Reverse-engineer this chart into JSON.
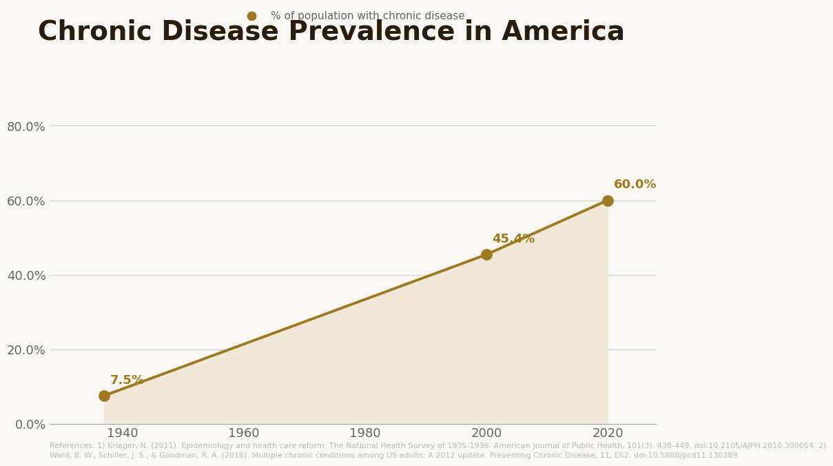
{
  "title": "Chronic Disease Prevalence in America",
  "title_fontsize": 28,
  "title_fontweight": "bold",
  "title_color": "#2b1d0e",
  "legend_label": "% of population with chronic disease",
  "x_values": [
    1937,
    2000,
    2020
  ],
  "y_values": [
    7.5,
    45.4,
    60.0
  ],
  "labels": [
    "7.5%",
    "45.4%",
    "60.0%"
  ],
  "line_color": "#a07820",
  "marker_color": "#a07820",
  "fill_color": "#f0e8d8",
  "fill_alpha": 1.0,
  "background_color": "#faf8f4",
  "grid_color": "#cccccc",
  "ytick_labels": [
    "0.0%",
    "20.0%",
    "40.0%",
    "60.0%",
    "80.0%"
  ],
  "ytick_values": [
    0,
    20,
    40,
    60,
    80
  ],
  "xtick_values": [
    1940,
    1960,
    1980,
    2000,
    2020
  ],
  "xlim": [
    1928,
    2028
  ],
  "ylim": [
    0,
    90
  ],
  "line_width": 2.8,
  "marker_size": 11,
  "label_fontsize": 13,
  "label_color": "#a07820",
  "tick_fontsize": 13,
  "tick_color": "#666666",
  "axis_color": "#aaaaaa",
  "reference_text": "References: 1) Krieger, N. (2011). Epidemiology and health care reform: The National Health Survey of 1935-1936. American Journal of Public Health, 101(3), 438-449. doi:10.2105/AJPH.2010.300054. 2)\nWard, B. W., Schiller, J. S., & Goodman, R. A. (2018). Multiple chronic conditions among US adults: A 2012 update. Preventing Chronic Disease, 11, E62. doi:10.5888/pcd11.130389",
  "reference_fontsize": 8,
  "reference_color": "#bbbbbb"
}
